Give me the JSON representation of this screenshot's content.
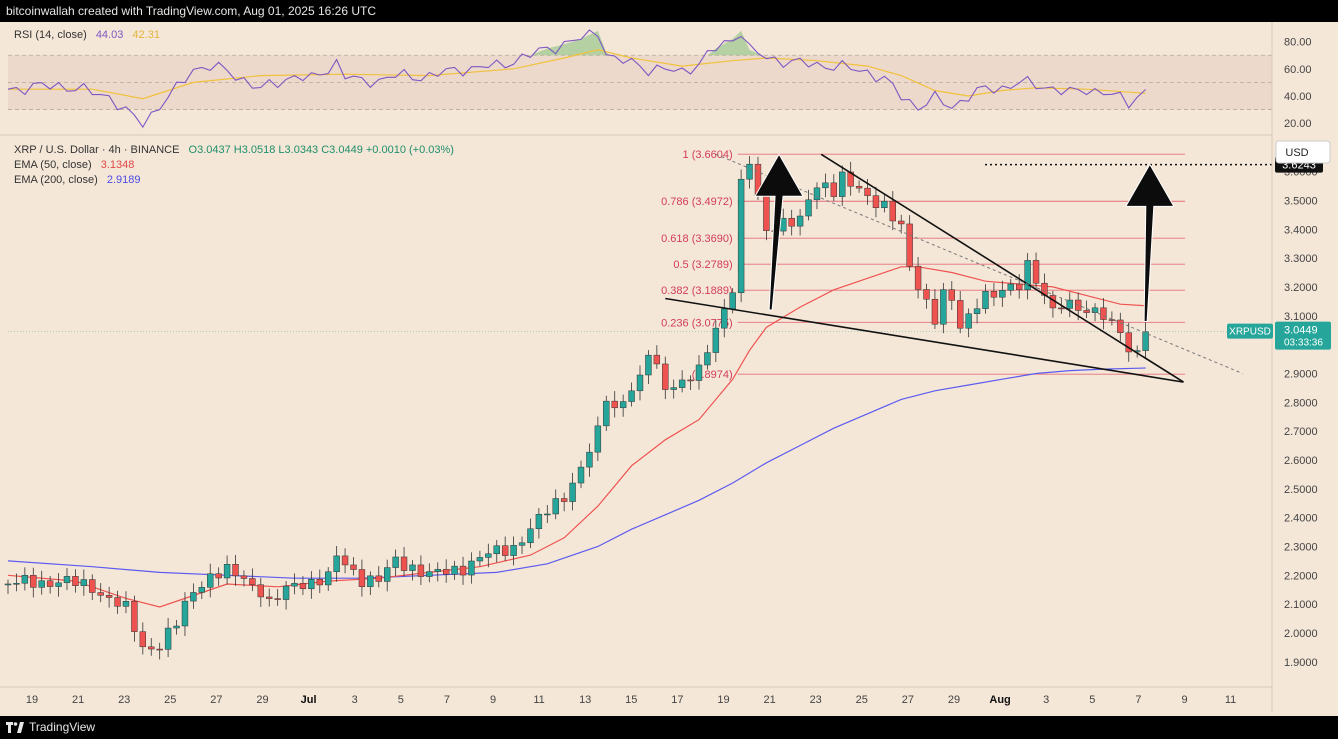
{
  "header": {
    "title": "bitcoinwallah created with TradingView.com, Aug 01, 2025 16:26 UTC"
  },
  "footer": {
    "brand": "TradingView"
  },
  "rsi": {
    "label": "RSI (14, close)",
    "value": "44.03",
    "ma_value": "42.31",
    "ticks": [
      "80.00",
      "60.00",
      "40.00",
      "20.00"
    ],
    "band_upper": 70,
    "band_lower": 30,
    "rsi_color": "#7e57c2",
    "ma_color": "#f0c23b"
  },
  "legend": {
    "symbol": "XRP / U.S. Dollar · 4h · BINANCE",
    "ohlc": "O3.0437  H3.0518  L3.0343  C3.0449  +0.0010 (+0.03%)",
    "ema50_label": "EMA (50, close)",
    "ema50_value": "3.1348",
    "ema200_label": "EMA (200, close)",
    "ema200_value": "2.9189"
  },
  "chart_data": {
    "type": "candlestick",
    "symbol": "XRPUSD",
    "currency": "USD",
    "x_ticks": [
      "19",
      "21",
      "23",
      "25",
      "27",
      "29",
      "Jul",
      "3",
      "5",
      "7",
      "9",
      "11",
      "13",
      "15",
      "17",
      "19",
      "21",
      "23",
      "25",
      "27",
      "29",
      "Aug",
      "3",
      "5",
      "7",
      "9",
      "11"
    ],
    "y_ticks": [
      "3.6000",
      "3.5000",
      "3.4000",
      "3.3000",
      "3.2000",
      "3.1000",
      "3.0000",
      "2.9000",
      "2.8000",
      "2.7000",
      "2.6000",
      "2.5000",
      "2.4000",
      "2.3000",
      "2.2000",
      "2.1000",
      "2.0000",
      "1.9000"
    ],
    "y_tick_values": [
      3.6,
      3.5,
      3.4,
      3.3,
      3.2,
      3.1,
      3.0,
      2.9,
      2.8,
      2.7,
      2.6,
      2.5,
      2.4,
      2.3,
      2.2,
      2.1,
      2.0,
      1.9
    ],
    "ylim": [
      1.83,
      3.72
    ],
    "fib_levels": [
      {
        "label": "1 (3.6604)",
        "value": 3.6604
      },
      {
        "label": "0.786 (3.4972)",
        "value": 3.4972
      },
      {
        "label": "0.618 (3.3690)",
        "value": 3.369
      },
      {
        "label": "0.5 (3.2789)",
        "value": 3.2789
      },
      {
        "label": "0.382 (3.1889)",
        "value": 3.1889
      },
      {
        "label": "0.236 (3.0775)",
        "value": 3.0775
      },
      {
        "label": "(2.8974)",
        "value": 2.8974
      }
    ],
    "target_level": {
      "label": "3.6243",
      "value": 3.6243
    },
    "last_price": {
      "symbol": "XRPUSD",
      "price": "3.0449",
      "countdown": "03:33:36",
      "value": 3.0449
    },
    "colors": {
      "up": "#26a69a",
      "down": "#ef5350",
      "ema50": "#ef5350",
      "ema200": "#5b5bf0",
      "fib": "#e05a6a",
      "fib_text": "#d23c5a"
    },
    "price_keypoints": [
      [
        0,
        2.17
      ],
      [
        6,
        2.18
      ],
      [
        10,
        2.16
      ],
      [
        14,
        2.08
      ],
      [
        16,
        1.95
      ],
      [
        18,
        1.96
      ],
      [
        20,
        2.03
      ],
      [
        22,
        2.15
      ],
      [
        24,
        2.2
      ],
      [
        26,
        2.21
      ],
      [
        28,
        2.19
      ],
      [
        30,
        2.15
      ],
      [
        31,
        2.1
      ],
      [
        32,
        2.12
      ],
      [
        34,
        2.17
      ],
      [
        36,
        2.18
      ],
      [
        38,
        2.19
      ],
      [
        39,
        2.26
      ],
      [
        40,
        2.24
      ],
      [
        42,
        2.19
      ],
      [
        44,
        2.18
      ],
      [
        46,
        2.25
      ],
      [
        48,
        2.23
      ],
      [
        50,
        2.2
      ],
      [
        52,
        2.21
      ],
      [
        54,
        2.23
      ],
      [
        56,
        2.26
      ],
      [
        58,
        2.28
      ],
      [
        60,
        2.3
      ],
      [
        62,
        2.36
      ],
      [
        64,
        2.42
      ],
      [
        66,
        2.48
      ],
      [
        68,
        2.57
      ],
      [
        70,
        2.69
      ],
      [
        71,
        2.82
      ],
      [
        72,
        2.78
      ],
      [
        74,
        2.85
      ],
      [
        75,
        2.87
      ],
      [
        76,
        2.97
      ],
      [
        78,
        2.86
      ],
      [
        80,
        2.87
      ],
      [
        82,
        2.9
      ],
      [
        84,
        3.06
      ],
      [
        86,
        3.2
      ],
      [
        87,
        3.55
      ],
      [
        88,
        3.63
      ],
      [
        89,
        3.5
      ],
      [
        90,
        3.4
      ],
      [
        92,
        3.43
      ],
      [
        94,
        3.42
      ],
      [
        95,
        3.5
      ],
      [
        96,
        3.55
      ],
      [
        97,
        3.56
      ],
      [
        98,
        3.54
      ],
      [
        99,
        3.58
      ],
      [
        100,
        3.55
      ],
      [
        102,
        3.51
      ],
      [
        104,
        3.49
      ],
      [
        106,
        3.4
      ],
      [
        107,
        3.26
      ],
      [
        108,
        3.2
      ],
      [
        109,
        3.15
      ],
      [
        110,
        3.1
      ],
      [
        111,
        3.18
      ],
      [
        112,
        3.15
      ],
      [
        113,
        3.05
      ],
      [
        114,
        3.09
      ],
      [
        115,
        3.15
      ],
      [
        116,
        3.18
      ],
      [
        118,
        3.18
      ],
      [
        120,
        3.2
      ],
      [
        121,
        3.28
      ],
      [
        122,
        3.24
      ],
      [
        123,
        3.17
      ],
      [
        124,
        3.12
      ],
      [
        126,
        3.13
      ],
      [
        127,
        3.14
      ],
      [
        128,
        3.11
      ],
      [
        129,
        3.14
      ],
      [
        130,
        3.09
      ],
      [
        131,
        3.06
      ],
      [
        132,
        3.05
      ],
      [
        133,
        2.96
      ],
      [
        134,
        3.0
      ],
      [
        135,
        3.04
      ]
    ],
    "ema50_keypoints": [
      [
        0,
        2.2
      ],
      [
        8,
        2.18
      ],
      [
        14,
        2.12
      ],
      [
        18,
        2.09
      ],
      [
        22,
        2.13
      ],
      [
        26,
        2.17
      ],
      [
        32,
        2.16
      ],
      [
        38,
        2.18
      ],
      [
        44,
        2.19
      ],
      [
        50,
        2.21
      ],
      [
        56,
        2.23
      ],
      [
        62,
        2.27
      ],
      [
        66,
        2.33
      ],
      [
        70,
        2.44
      ],
      [
        74,
        2.58
      ],
      [
        78,
        2.67
      ],
      [
        82,
        2.74
      ],
      [
        86,
        2.88
      ],
      [
        88,
        2.98
      ],
      [
        90,
        3.06
      ],
      [
        94,
        3.13
      ],
      [
        98,
        3.19
      ],
      [
        102,
        3.23
      ],
      [
        106,
        3.27
      ],
      [
        108,
        3.27
      ],
      [
        112,
        3.25
      ],
      [
        116,
        3.22
      ],
      [
        120,
        3.21
      ],
      [
        124,
        3.2
      ],
      [
        128,
        3.17
      ],
      [
        132,
        3.14
      ],
      [
        135,
        3.135
      ]
    ],
    "ema200_keypoints": [
      [
        0,
        2.25
      ],
      [
        10,
        2.23
      ],
      [
        18,
        2.21
      ],
      [
        26,
        2.2
      ],
      [
        34,
        2.19
      ],
      [
        42,
        2.19
      ],
      [
        50,
        2.2
      ],
      [
        58,
        2.21
      ],
      [
        64,
        2.24
      ],
      [
        70,
        2.3
      ],
      [
        74,
        2.36
      ],
      [
        78,
        2.41
      ],
      [
        82,
        2.46
      ],
      [
        86,
        2.52
      ],
      [
        90,
        2.59
      ],
      [
        94,
        2.65
      ],
      [
        98,
        2.71
      ],
      [
        102,
        2.76
      ],
      [
        106,
        2.81
      ],
      [
        110,
        2.84
      ],
      [
        114,
        2.86
      ],
      [
        118,
        2.88
      ],
      [
        122,
        2.9
      ],
      [
        126,
        2.91
      ],
      [
        130,
        2.915
      ],
      [
        135,
        2.919
      ]
    ],
    "rsi_keypoints": [
      [
        0,
        45
      ],
      [
        6,
        48
      ],
      [
        12,
        40
      ],
      [
        14,
        28
      ],
      [
        16,
        20
      ],
      [
        18,
        33
      ],
      [
        20,
        45
      ],
      [
        22,
        60
      ],
      [
        24,
        62
      ],
      [
        26,
        58
      ],
      [
        28,
        52
      ],
      [
        30,
        45
      ],
      [
        32,
        50
      ],
      [
        34,
        55
      ],
      [
        36,
        52
      ],
      [
        38,
        60
      ],
      [
        39,
        65
      ],
      [
        40,
        55
      ],
      [
        42,
        50
      ],
      [
        44,
        52
      ],
      [
        46,
        55
      ],
      [
        48,
        54
      ],
      [
        50,
        55
      ],
      [
        54,
        60
      ],
      [
        58,
        62
      ],
      [
        62,
        70
      ],
      [
        64,
        75
      ],
      [
        66,
        78
      ],
      [
        68,
        82
      ],
      [
        70,
        88
      ],
      [
        71,
        72
      ],
      [
        72,
        66
      ],
      [
        74,
        65
      ],
      [
        76,
        60
      ],
      [
        80,
        58
      ],
      [
        82,
        64
      ],
      [
        84,
        75
      ],
      [
        86,
        82
      ],
      [
        87,
        88
      ],
      [
        88,
        74
      ],
      [
        90,
        68
      ],
      [
        94,
        64
      ],
      [
        98,
        62
      ],
      [
        102,
        58
      ],
      [
        104,
        52
      ],
      [
        106,
        40
      ],
      [
        108,
        32
      ],
      [
        110,
        38
      ],
      [
        112,
        32
      ],
      [
        114,
        40
      ],
      [
        116,
        45
      ],
      [
        118,
        46
      ],
      [
        120,
        50
      ],
      [
        122,
        48
      ],
      [
        124,
        46
      ],
      [
        126,
        42
      ],
      [
        128,
        45
      ],
      [
        130,
        43
      ],
      [
        132,
        38
      ],
      [
        133,
        35
      ],
      [
        134,
        40
      ],
      [
        135,
        44
      ]
    ],
    "rsi_ma_keypoints": [
      [
        0,
        45
      ],
      [
        10,
        45
      ],
      [
        16,
        38
      ],
      [
        22,
        50
      ],
      [
        30,
        55
      ],
      [
        40,
        56
      ],
      [
        50,
        55
      ],
      [
        60,
        60
      ],
      [
        66,
        68
      ],
      [
        70,
        74
      ],
      [
        74,
        68
      ],
      [
        80,
        62
      ],
      [
        86,
        66
      ],
      [
        90,
        68
      ],
      [
        96,
        66
      ],
      [
        102,
        62
      ],
      [
        106,
        55
      ],
      [
        110,
        44
      ],
      [
        114,
        40
      ],
      [
        118,
        44
      ],
      [
        122,
        46
      ],
      [
        128,
        45
      ],
      [
        135,
        42
      ]
    ],
    "wedge_upper": [
      [
        96.5,
        3.66
      ],
      [
        139.5,
        2.87
      ]
    ],
    "wedge_lower": [
      [
        78,
        3.16
      ],
      [
        139.5,
        2.87
      ]
    ],
    "dashed_trend": [
      [
        84,
        3.66
      ],
      [
        146.5,
        2.9
      ]
    ],
    "arrows": [
      {
        "base_x": 90.5,
        "base_y": 3.12,
        "tip_x": 91.5,
        "tip_y": 3.66
      },
      {
        "base_x": 135,
        "base_y": 3.08,
        "tip_x": 135.5,
        "tip_y": 3.625
      }
    ],
    "n_bars": 136,
    "axis_end": 150
  }
}
